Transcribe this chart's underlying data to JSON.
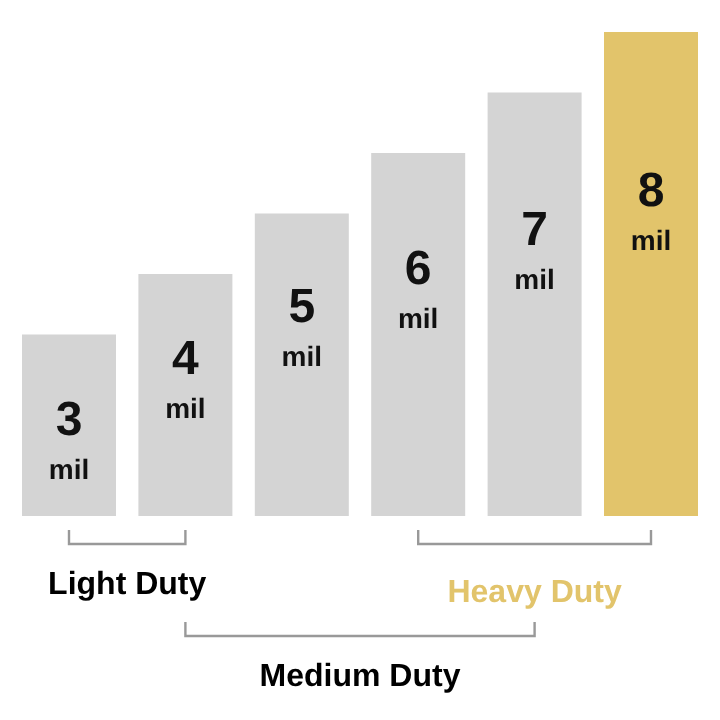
{
  "chart_data": {
    "type": "bar",
    "categories": [
      null,
      null,
      null,
      null,
      null,
      null
    ],
    "values": [
      3,
      4,
      5,
      6,
      7,
      8
    ],
    "colors": [
      "#d4d4d4",
      "#d4d4d4",
      "#d4d4d4",
      "#d4d4d4",
      "#d4d4d4",
      "#e2c46b"
    ],
    "value_labels": [
      "3 mil",
      "4 mil",
      "5 mil",
      "6 mil",
      "7 mil",
      "8 mil"
    ],
    "annotations": [
      "Light Duty",
      "Medium Duty",
      "Heavy Duty"
    ]
  }
}
